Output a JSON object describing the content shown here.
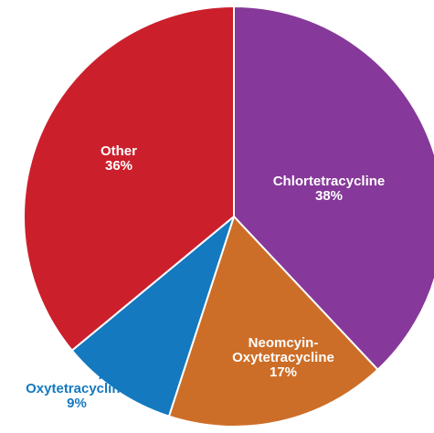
{
  "chart_data": {
    "type": "pie",
    "title": "",
    "slices": [
      {
        "label": "Chlortetracycline",
        "value": 38,
        "value_label": "38%",
        "color": "#86399a",
        "label_color": "#ffffff",
        "label_lines": [
          "Chlortetracycline",
          "38%"
        ]
      },
      {
        "label": "Neomcyin-Oxytetracycline",
        "value": 17,
        "value_label": "17%",
        "color": "#cd6e28",
        "label_color": "#ffffff",
        "label_lines": [
          "Neomcyin-",
          "Oxytetracycline",
          "17%"
        ]
      },
      {
        "label": "Oxytetracycline",
        "value": 9,
        "value_label": "9%",
        "color": "#1479bf",
        "label_color": "#1479bf",
        "label_lines": [
          "Oxytetracycline",
          "9%"
        ],
        "label_outside": true
      },
      {
        "label": "Other",
        "value": 36,
        "value_label": "36%",
        "color": "#cc1f2c",
        "label_color": "#ffffff",
        "label_lines": [
          "Other",
          "36%"
        ]
      }
    ],
    "start_angle": "12 o'clock",
    "direction": "clockwise",
    "legend": "none"
  }
}
